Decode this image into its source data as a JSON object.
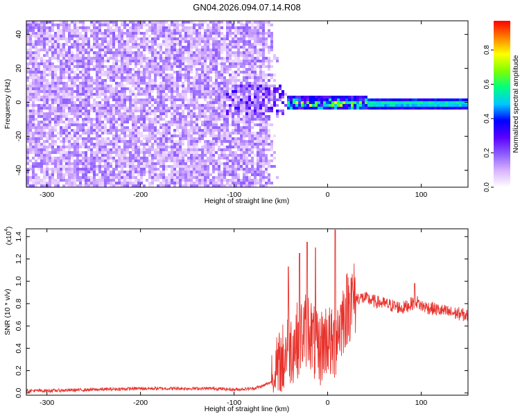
{
  "title": "GN04.2026.094.07.14.R08",
  "chart_data": [
    {
      "type": "heatmap",
      "xlabel": "Height of straight line (km)",
      "ylabel": "Frequency (Hz)",
      "xlim": [
        -322,
        150
      ],
      "ylim": [
        -50,
        48
      ],
      "xticks": [
        -300,
        -200,
        -100,
        0,
        100
      ],
      "yticks": [
        -40,
        -20,
        0,
        20,
        40
      ],
      "colorbar": {
        "label": "Normalized spectral amplitude",
        "range": [
          0.0,
          0.97
        ],
        "ticks": [
          0.0,
          0.2,
          0.4,
          0.6,
          0.8
        ],
        "tick_labels": [
          "0.0",
          "0.2",
          "0.4",
          "0.6",
          "0.8"
        ],
        "colormap": [
          "#ffffff",
          "#d9b3ff",
          "#8c5cff",
          "#5a00ff",
          "#0000ff",
          "#00c8ff",
          "#00ff80",
          "#80ff00",
          "#ffff00",
          "#ff8000",
          "#ff0000"
        ]
      },
      "regions": [
        {
          "x": [
            -322,
            -55
          ],
          "freq": [
            -50,
            48
          ],
          "level": "low broadband noise (0.05-0.2)"
        },
        {
          "x": [
            -110,
            -45
          ],
          "freq": [
            -8,
            12
          ],
          "level": "0.1-0.3 patches"
        },
        {
          "x": [
            -45,
            40
          ],
          "freq": [
            -4,
            4
          ],
          "level": "0.3-0.9 fluctuating"
        },
        {
          "x": [
            40,
            150
          ],
          "freq": [
            -3,
            3
          ],
          "level": "0.3-0.6 steady band"
        }
      ]
    },
    {
      "type": "line",
      "xlabel": "Height of straight line (km)",
      "ylabel": "SNR (10 * v/v)",
      "multiplier": "(x10",
      "multiplier_exp": "4",
      "xlim": [
        -322,
        150
      ],
      "ylim": [
        -0.02,
        1.47
      ],
      "xticks": [
        -300,
        -200,
        -100,
        0,
        100
      ],
      "yticks": [
        0.0,
        0.2,
        0.4,
        0.6,
        0.8,
        1.0,
        1.2,
        1.4
      ],
      "ytick_labels": [
        "0.0",
        "0.2",
        "0.4",
        "0.6",
        "0.8",
        "1.0",
        "1.2",
        "1.4"
      ],
      "series": [
        {
          "color": "#e8322c",
          "x": [
            -322,
            -300,
            -250,
            -200,
            -150,
            -120,
            -100,
            -80,
            -70,
            -60,
            -55,
            -50,
            -45,
            -42,
            -40,
            -35,
            -30,
            -25,
            -20,
            -15,
            -10,
            -5,
            0,
            5,
            8,
            10,
            15,
            20,
            25,
            30,
            35,
            40,
            50,
            60,
            70,
            80,
            90,
            95,
            100,
            110,
            120,
            130,
            140,
            150
          ],
          "y": [
            0.02,
            0.02,
            0.03,
            0.04,
            0.04,
            0.04,
            0.03,
            0.04,
            0.06,
            0.1,
            0.15,
            0.25,
            0.35,
            0.55,
            0.4,
            0.45,
            0.5,
            0.55,
            0.6,
            0.45,
            0.35,
            0.45,
            0.5,
            0.4,
            0.45,
            0.55,
            0.65,
            0.75,
            0.82,
            0.85,
            0.85,
            0.85,
            0.82,
            0.8,
            0.78,
            0.76,
            0.8,
            0.82,
            0.78,
            0.76,
            0.74,
            0.72,
            0.71,
            0.69
          ],
          "spikes": [
            {
              "x": -42,
              "y": 1.13
            },
            {
              "x": -30,
              "y": 1.25
            },
            {
              "x": -22,
              "y": 1.35
            },
            {
              "x": -13,
              "y": 1.3
            },
            {
              "x": 8,
              "y": 1.46
            },
            {
              "x": 25,
              "y": 1.03
            },
            {
              "x": 93,
              "y": 0.98
            }
          ]
        }
      ]
    }
  ]
}
